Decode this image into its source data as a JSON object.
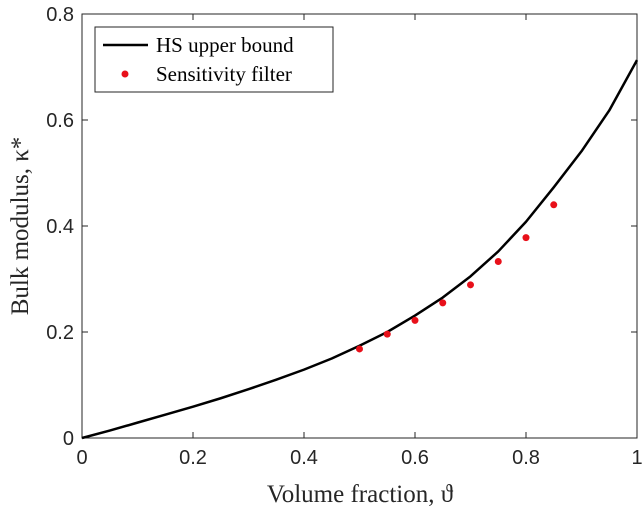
{
  "chart_data": {
    "type": "line",
    "xlabel": "Volume fraction, ϑ",
    "ylabel": "Bulk modulus, κ*",
    "xlim": [
      0,
      1
    ],
    "ylim": [
      0,
      0.8
    ],
    "x_ticks": [
      "0",
      "0.2",
      "0.4",
      "0.6",
      "0.8",
      "1"
    ],
    "y_ticks": [
      "0",
      "0.2",
      "0.4",
      "0.6",
      "0.8"
    ],
    "grid": false,
    "legend_position": "top-left",
    "series": [
      {
        "name": "HS upper bound",
        "kind": "line",
        "color": "#000000",
        "x": [
          0,
          0.05,
          0.1,
          0.15,
          0.2,
          0.25,
          0.3,
          0.35,
          0.4,
          0.45,
          0.5,
          0.55,
          0.6,
          0.65,
          0.7,
          0.75,
          0.8,
          0.85,
          0.9,
          0.95,
          1.0
        ],
        "y": [
          0,
          0.014,
          0.029,
          0.044,
          0.059,
          0.075,
          0.092,
          0.11,
          0.129,
          0.15,
          0.174,
          0.2,
          0.231,
          0.265,
          0.305,
          0.352,
          0.408,
          0.473,
          0.541,
          0.618,
          0.713
        ]
      },
      {
        "name": "Sensitivity filter",
        "kind": "scatter",
        "color": "#e8101a",
        "x": [
          0.5,
          0.55,
          0.6,
          0.65,
          0.7,
          0.75,
          0.8,
          0.85
        ],
        "y": [
          0.168,
          0.196,
          0.222,
          0.255,
          0.289,
          0.333,
          0.378,
          0.44
        ]
      }
    ]
  }
}
